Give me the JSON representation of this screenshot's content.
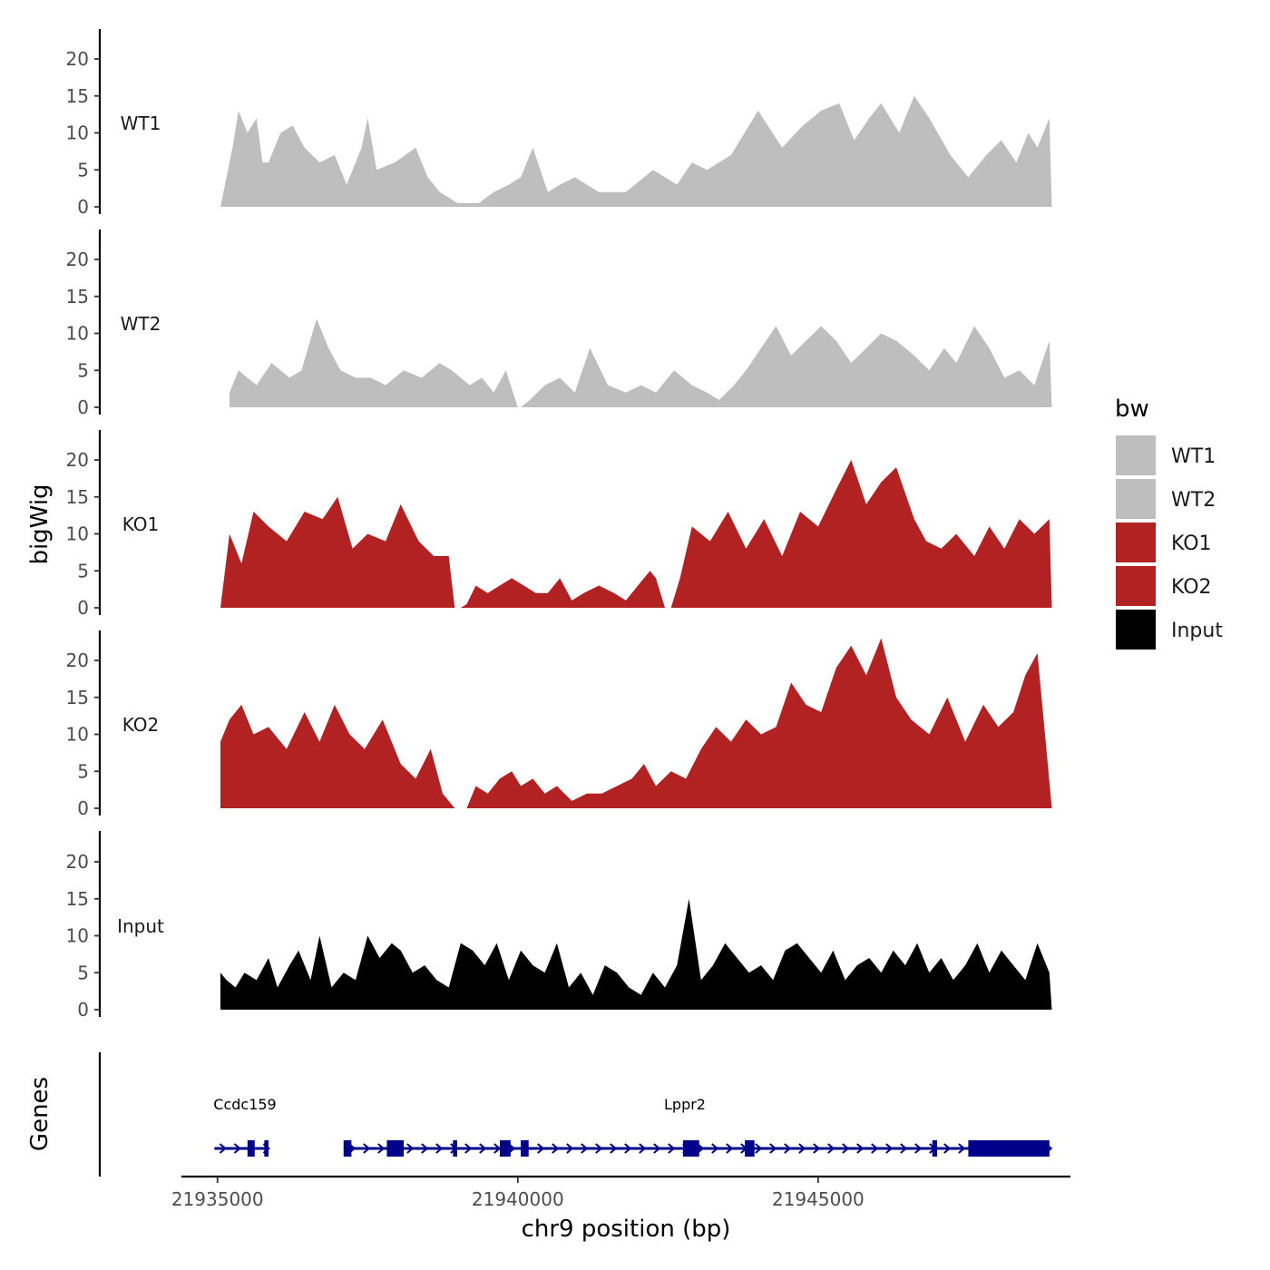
{
  "chart_data": {
    "type": "area",
    "xlabel": "chr9 position (bp)",
    "ylabel": "bigWig",
    "genes_label": "Genes",
    "xlim": [
      21934400,
      21949200
    ],
    "x_ticks": [
      21935000,
      21940000,
      21945000
    ],
    "x_tick_labels": [
      "21935000",
      "21940000",
      "21945000"
    ],
    "ylim": [
      0,
      24
    ],
    "y_ticks": [
      0,
      5,
      10,
      15,
      20
    ],
    "y_tick_labels": [
      "0",
      "5",
      "10",
      "15",
      "20"
    ],
    "legend": {
      "title": "bw",
      "entries": [
        {
          "label": "WT1",
          "color": "#BEBEBE"
        },
        {
          "label": "WT2",
          "color": "#BEBEBE"
        },
        {
          "label": "KO1",
          "color": "#B22222"
        },
        {
          "label": "KO2",
          "color": "#B22222"
        },
        {
          "label": "Input",
          "color": "#000000"
        }
      ]
    },
    "series": [
      {
        "name": "WT1",
        "color": "#BEBEBE",
        "x": [
          21935050,
          21935250,
          21935350,
          21935500,
          21935650,
          21935750,
          21935850,
          21936050,
          21936250,
          21936450,
          21936700,
          21936950,
          21937150,
          21937400,
          21937500,
          21937650,
          21937950,
          21938300,
          21938500,
          21938700,
          21939000,
          21939350,
          21939600,
          21939850,
          21940050,
          21940250,
          21940500,
          21940700,
          21940950,
          21941350,
          21941800,
          21942250,
          21942650,
          21942900,
          21943150,
          21943550,
          21944000,
          21944400,
          21944750,
          21945050,
          21945350,
          21945600,
          21945850,
          21946050,
          21946350,
          21946600,
          21946850,
          21947200,
          21947500,
          21947800,
          21948050,
          21948300,
          21948500,
          21948650,
          21948850,
          21948890
        ],
        "values": [
          0,
          8,
          13,
          10,
          12,
          6,
          6,
          10,
          11,
          8,
          6,
          7,
          3,
          8,
          12,
          5,
          6,
          8,
          4,
          2,
          0.5,
          0.5,
          2,
          3,
          4,
          8,
          2,
          3,
          4,
          2,
          2,
          5,
          3,
          6,
          5,
          7,
          13,
          8,
          11,
          13,
          14,
          9,
          12,
          14,
          10,
          15,
          12,
          7,
          4,
          7,
          9,
          6,
          10,
          8,
          12,
          0
        ]
      },
      {
        "name": "WT2",
        "color": "#BEBEBE",
        "x": [
          21935200,
          21935350,
          21935500,
          21935650,
          21935900,
          21936200,
          21936400,
          21936650,
          21936850,
          21937050,
          21937300,
          21937550,
          21937800,
          21938100,
          21938400,
          21938700,
          21938900,
          21939200,
          21939400,
          21939600,
          21939800,
          21940000,
          21940050,
          21940200,
          21940450,
          21940700,
          21940950,
          21941200,
          21941500,
          21941800,
          21942050,
          21942300,
          21942600,
          21942900,
          21943150,
          21943350,
          21943600,
          21943800,
          21944050,
          21944300,
          21944550,
          21944800,
          21945050,
          21945300,
          21945550,
          21945800,
          21946050,
          21946300,
          21946600,
          21946850,
          21947100,
          21947300,
          21947600,
          21947850,
          21948100,
          21948350,
          21948600,
          21948850,
          21948890
        ],
        "values": [
          2,
          5,
          4,
          3,
          6,
          4,
          5,
          12,
          8,
          5,
          4,
          4,
          3,
          5,
          4,
          6,
          5,
          3,
          4,
          2,
          5,
          0,
          0,
          1,
          3,
          4,
          2,
          8,
          3,
          2,
          3,
          2,
          5,
          3,
          2,
          1,
          3,
          5,
          8,
          11,
          7,
          9,
          11,
          9,
          6,
          8,
          10,
          9,
          7,
          5,
          8,
          6,
          11,
          8,
          4,
          5,
          3,
          9,
          0
        ]
      },
      {
        "name": "KO1",
        "color": "#B22222",
        "x": [
          21935050,
          21935200,
          21935400,
          21935600,
          21935850,
          21936150,
          21936450,
          21936750,
          21937000,
          21937250,
          21937500,
          21937800,
          21938050,
          21938350,
          21938600,
          21938850,
          21938950,
          21939050,
          21939150,
          21939300,
          21939500,
          21939700,
          21939900,
          21940100,
          21940300,
          21940500,
          21940700,
          21940900,
          21941100,
          21941350,
          21941600,
          21941800,
          21942000,
          21942200,
          21942300,
          21942450,
          21942550,
          21942700,
          21942900,
          21943200,
          21943500,
          21943800,
          21944100,
          21944400,
          21944700,
          21945000,
          21945300,
          21945550,
          21945800,
          21946050,
          21946300,
          21946600,
          21946800,
          21947050,
          21947300,
          21947600,
          21947850,
          21948100,
          21948350,
          21948600,
          21948850,
          21948890
        ],
        "values": [
          0,
          10,
          6,
          13,
          11,
          9,
          13,
          12,
          15,
          8,
          10,
          9,
          14,
          9,
          7,
          7,
          0,
          0,
          0.5,
          3,
          2,
          3,
          4,
          3,
          2,
          2,
          4,
          1,
          2,
          3,
          2,
          1,
          3,
          5,
          4,
          0,
          0,
          4,
          11,
          9,
          13,
          8,
          12,
          7,
          13,
          11,
          16,
          20,
          14,
          17,
          19,
          12,
          9,
          8,
          10,
          7,
          11,
          8,
          12,
          10,
          12,
          0
        ]
      },
      {
        "name": "KO2",
        "color": "#B22222",
        "x": [
          21935050,
          21935200,
          21935400,
          21935600,
          21935850,
          21936150,
          21936450,
          21936700,
          21936950,
          21937200,
          21937450,
          21937750,
          21938050,
          21938300,
          21938550,
          21938750,
          21938950,
          21939050,
          21939150,
          21939300,
          21939500,
          21939700,
          21939900,
          21940050,
          21940250,
          21940450,
          21940650,
          21940900,
          21941150,
          21941400,
          21941650,
          21941900,
          21942100,
          21942300,
          21942550,
          21942800,
          21943050,
          21943300,
          21943550,
          21943800,
          21944050,
          21944300,
          21944550,
          21944800,
          21945050,
          21945300,
          21945550,
          21945800,
          21946050,
          21946300,
          21946550,
          21946850,
          21947150,
          21947450,
          21947750,
          21948000,
          21948250,
          21948450,
          21948650,
          21948800,
          21948890
        ],
        "values": [
          9,
          12,
          14,
          10,
          11,
          8,
          13,
          9,
          14,
          10,
          8,
          12,
          6,
          4,
          8,
          2,
          0,
          0,
          0,
          3,
          2,
          4,
          5,
          3,
          4,
          2,
          3,
          1,
          2,
          2,
          3,
          4,
          6,
          3,
          5,
          4,
          8,
          11,
          9,
          12,
          10,
          11,
          17,
          14,
          13,
          19,
          22,
          18,
          23,
          15,
          12,
          10,
          15,
          9,
          14,
          11,
          13,
          18,
          21,
          8,
          0
        ]
      },
      {
        "name": "Input",
        "color": "#000000",
        "x": [
          21935050,
          21935150,
          21935300,
          21935450,
          21935650,
          21935850,
          21936000,
          21936200,
          21936350,
          21936550,
          21936700,
          21936900,
          21937100,
          21937300,
          21937500,
          21937700,
          21937900,
          21938050,
          21938250,
          21938450,
          21938650,
          21938850,
          21939050,
          21939250,
          21939450,
          21939650,
          21939850,
          21940050,
          21940250,
          21940450,
          21940650,
          21940850,
          21941050,
          21941250,
          21941450,
          21941650,
          21941850,
          21942050,
          21942250,
          21942450,
          21942650,
          21942850,
          21943050,
          21943250,
          21943450,
          21943650,
          21943850,
          21944050,
          21944250,
          21944450,
          21944650,
          21944850,
          21945050,
          21945250,
          21945450,
          21945650,
          21945850,
          21946050,
          21946250,
          21946450,
          21946650,
          21946850,
          21947050,
          21947250,
          21947450,
          21947650,
          21947850,
          21948050,
          21948250,
          21948450,
          21948650,
          21948850,
          21948890
        ],
        "values": [
          5,
          4,
          3,
          5,
          4,
          7,
          3,
          6,
          8,
          4,
          10,
          3,
          5,
          4,
          10,
          7,
          9,
          8,
          5,
          6,
          4,
          3,
          9,
          8,
          6,
          9,
          4,
          8,
          6,
          5,
          9,
          3,
          5,
          2,
          6,
          5,
          3,
          2,
          5,
          3,
          6,
          15,
          4,
          6,
          9,
          7,
          5,
          6,
          4,
          8,
          9,
          7,
          5,
          8,
          4,
          6,
          7,
          5,
          8,
          6,
          9,
          5,
          7,
          4,
          6,
          9,
          5,
          8,
          6,
          4,
          9,
          5,
          0
        ]
      }
    ],
    "genes": [
      {
        "name": "Ccdc159",
        "start": 21934950,
        "end": 21935850,
        "strand": "+",
        "exons": [
          [
            21935500,
            21935620
          ],
          [
            21935780,
            21935850
          ]
        ]
      },
      {
        "name": "Lppr2",
        "start": 21937100,
        "end": 21948850,
        "strand": "+",
        "exons": [
          [
            21937100,
            21937230
          ],
          [
            21937820,
            21938100
          ],
          [
            21938920,
            21938990
          ],
          [
            21939700,
            21939880
          ],
          [
            21940050,
            21940180
          ],
          [
            21942750,
            21943020
          ],
          [
            21943780,
            21943940
          ],
          [
            21946900,
            21946980
          ],
          [
            21947500,
            21948850
          ]
        ]
      }
    ]
  }
}
